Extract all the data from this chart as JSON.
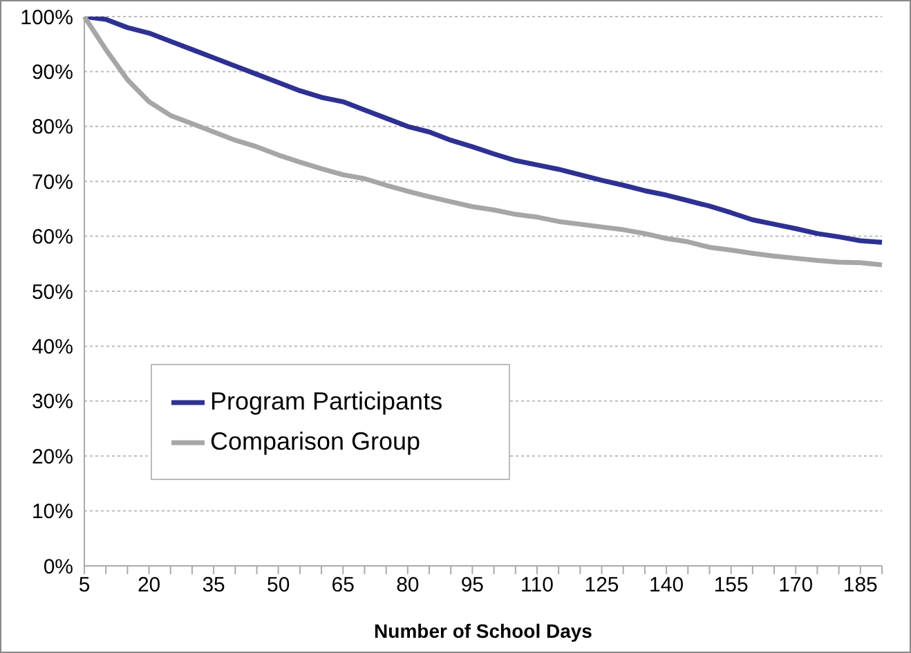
{
  "chart_data": {
    "type": "line",
    "xlabel": "Number of School Days",
    "categories": [
      "5",
      null,
      null,
      "20",
      null,
      null,
      "35",
      null,
      null,
      "50",
      null,
      null,
      "65",
      null,
      null,
      "80",
      null,
      null,
      "95",
      null,
      null,
      "110",
      null,
      null,
      "125",
      null,
      null,
      "140",
      null,
      null,
      "155",
      null,
      null,
      "170",
      null,
      null,
      "185",
      null
    ],
    "series": [
      {
        "name": "Program Participants",
        "color": "#2e3192",
        "values": [
          100,
          99.5,
          98,
          97,
          95.5,
          94,
          92.5,
          91,
          89.5,
          88,
          86.5,
          85.3,
          84.5,
          83,
          81.5,
          80,
          79,
          77.5,
          76.3,
          75,
          73.8,
          73,
          72.2,
          71.2,
          70.2,
          69.3,
          68.3,
          67.5,
          66.5,
          65.5,
          64.3,
          63,
          62.2,
          61.4,
          60.5,
          59.9,
          59.2,
          58.9
        ]
      },
      {
        "name": "Comparison Group",
        "color": "#a6a6a6",
        "values": [
          100,
          94,
          88.5,
          84.5,
          82,
          80.5,
          79,
          77.5,
          76.3,
          74.8,
          73.5,
          72.3,
          71.2,
          70.5,
          69.3,
          68.2,
          67.2,
          66.3,
          65.4,
          64.8,
          64,
          63.5,
          62.7,
          62.2,
          61.7,
          61.2,
          60.5,
          59.6,
          59,
          58,
          57.5,
          56.9,
          56.4,
          56,
          55.6,
          55.3,
          55.2,
          54.8
        ]
      }
    ],
    "ylim": [
      0,
      100
    ],
    "yticks": [
      {
        "value": 0,
        "label": "0%"
      },
      {
        "value": 10,
        "label": "10%"
      },
      {
        "value": 20,
        "label": "20%"
      },
      {
        "value": 30,
        "label": "30%"
      },
      {
        "value": 40,
        "label": "40%"
      },
      {
        "value": 50,
        "label": "50%"
      },
      {
        "value": 60,
        "label": "60%"
      },
      {
        "value": 70,
        "label": "70%"
      },
      {
        "value": 80,
        "label": "80%"
      },
      {
        "value": 90,
        "label": "90%"
      },
      {
        "value": 100,
        "label": "100%"
      }
    ],
    "grid": "y",
    "legend": "bottom left",
    "marker": "none",
    "line_style": "solid"
  }
}
